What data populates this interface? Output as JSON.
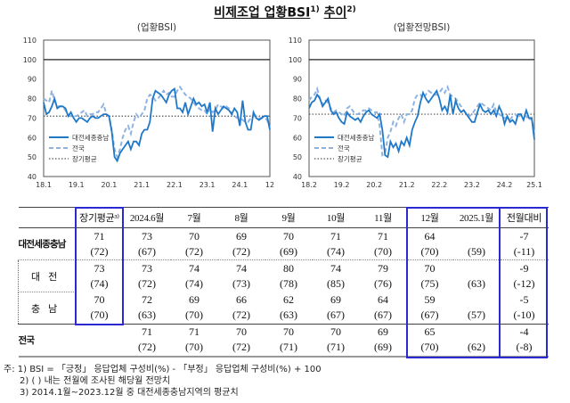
{
  "title": {
    "text": "비제조업 업황BSI",
    "sup1": "1)",
    "text2": "추이",
    "sup2": "2)"
  },
  "chart_data": [
    {
      "type": "line",
      "title": "(업황BSI)",
      "ylim": [
        40,
        110
      ],
      "yticks": [
        40,
        50,
        60,
        70,
        80,
        90,
        100,
        110
      ],
      "x_start": "2018-01",
      "x_ticks": [
        {
          "index": 0,
          "label": "18.1"
        },
        {
          "index": 12,
          "label": "19.1"
        },
        {
          "index": 24,
          "label": "20.1"
        },
        {
          "index": 36,
          "label": "21.1"
        },
        {
          "index": 48,
          "label": "22.1"
        },
        {
          "index": 60,
          "label": "23.1"
        },
        {
          "index": 72,
          "label": "24.1"
        },
        {
          "index": 83,
          "label": "12"
        }
      ],
      "reference_lines": [
        {
          "value": 100,
          "style": "solid"
        },
        {
          "name": "장기평균",
          "value": 71,
          "style": "dotted"
        }
      ],
      "legend": "bottom-left",
      "series": [
        {
          "name": "대전세종충남",
          "color": "#1f78c8",
          "style": "solid",
          "values": [
            78,
            72,
            73,
            76,
            80,
            75,
            76,
            76,
            75,
            71,
            73,
            70,
            68,
            70,
            70,
            69,
            68,
            70,
            71,
            70,
            70,
            71,
            72,
            72,
            71,
            63,
            50,
            48,
            52,
            54,
            56,
            58,
            54,
            58,
            58,
            56,
            62,
            64,
            64,
            68,
            80,
            84,
            83,
            82,
            80,
            78,
            82,
            84,
            85,
            75,
            75,
            73,
            78,
            72,
            76,
            80,
            77,
            78,
            76,
            77,
            73,
            78,
            63,
            75,
            72,
            74,
            76,
            75,
            74,
            72,
            75,
            73,
            66,
            79,
            68,
            64,
            64,
            73,
            70,
            69,
            70,
            71,
            71,
            64
          ]
        },
        {
          "name": "전국",
          "color": "#8fb3e0",
          "style": "dashed",
          "values": [
            80,
            79,
            78,
            84,
            79,
            76,
            76,
            76,
            74,
            72,
            71,
            71,
            71,
            72,
            73,
            74,
            71,
            72,
            72,
            73,
            73,
            75,
            77,
            72,
            71,
            64,
            54,
            50,
            54,
            60,
            64,
            66,
            62,
            68,
            72,
            70,
            72,
            74,
            80,
            82,
            81,
            79,
            80,
            82,
            84,
            82,
            83,
            81,
            81,
            84,
            86,
            84,
            82,
            81,
            80,
            78,
            76,
            75,
            74,
            74,
            72,
            75,
            73,
            74,
            77,
            76,
            75,
            76,
            75,
            72,
            71,
            70,
            70,
            69,
            68,
            68,
            70,
            71,
            71,
            70,
            70,
            70,
            69,
            65
          ]
        }
      ]
    },
    {
      "type": "line",
      "title": "(업황전망BSI)",
      "ylim": [
        40,
        110
      ],
      "yticks": [
        40,
        50,
        60,
        70,
        80,
        90,
        100,
        110
      ],
      "x_start": "2018-02",
      "x_ticks": [
        {
          "index": 0,
          "label": "18.2"
        },
        {
          "index": 12,
          "label": "19.2"
        },
        {
          "index": 24,
          "label": "20.2"
        },
        {
          "index": 36,
          "label": "21.2"
        },
        {
          "index": 48,
          "label": "22.2"
        },
        {
          "index": 60,
          "label": "23.2"
        },
        {
          "index": 72,
          "label": "24.2"
        },
        {
          "index": 83,
          "label": "25.1"
        }
      ],
      "reference_lines": [
        {
          "value": 100,
          "style": "solid"
        },
        {
          "name": "장기평균",
          "value": 72,
          "style": "dotted"
        }
      ],
      "legend": "bottom-left",
      "series": [
        {
          "name": "대전세종충남",
          "color": "#1f78c8",
          "style": "solid",
          "values": [
            75,
            78,
            79,
            82,
            80,
            76,
            78,
            80,
            74,
            72,
            73,
            70,
            68,
            67,
            73,
            71,
            70,
            69,
            70,
            68,
            71,
            73,
            74,
            72,
            71,
            70,
            72,
            64,
            51,
            50,
            58,
            55,
            57,
            53,
            58,
            56,
            60,
            56,
            64,
            68,
            71,
            78,
            83,
            80,
            78,
            80,
            82,
            84,
            80,
            74,
            76,
            73,
            82,
            72,
            79,
            75,
            73,
            74,
            72,
            70,
            68,
            68,
            73,
            77,
            74,
            73,
            74,
            72,
            74,
            71,
            76,
            73,
            67,
            71,
            68,
            69,
            67,
            72,
            72,
            69,
            74,
            70,
            70,
            59
          ]
        },
        {
          "name": "전국",
          "color": "#8fb3e0",
          "style": "dashed",
          "values": [
            79,
            81,
            82,
            85,
            80,
            77,
            79,
            78,
            75,
            73,
            74,
            73,
            72,
            71,
            75,
            76,
            74,
            72,
            72,
            73,
            74,
            74,
            75,
            74,
            73,
            73,
            66,
            51,
            52,
            60,
            63,
            68,
            66,
            70,
            72,
            68,
            72,
            72,
            74,
            80,
            82,
            82,
            80,
            82,
            84,
            83,
            82,
            82,
            83,
            85,
            83,
            86,
            82,
            81,
            80,
            78,
            76,
            74,
            72,
            71,
            72,
            74,
            76,
            78,
            77,
            76,
            75,
            74,
            77,
            73,
            72,
            71,
            70,
            70,
            69,
            71,
            72,
            70,
            72,
            71,
            71,
            69,
            70,
            62
          ]
        }
      ]
    }
  ],
  "table": {
    "headers": [
      "",
      "장기평균³⁾",
      "2024.6월",
      "7월",
      "8월",
      "9월",
      "10월",
      "11월",
      "12월",
      "2025.1월",
      "전월대비"
    ],
    "rows": [
      {
        "label": "대전세종충남",
        "values": [
          "71",
          "73",
          "70",
          "69",
          "70",
          "71",
          "71",
          "64",
          "",
          "-7"
        ],
        "forecasts": [
          "(72)",
          "(67)",
          "(72)",
          "(72)",
          "(69)",
          "(74)",
          "(70)",
          "(70)",
          "(59)",
          "(-11)"
        ]
      },
      {
        "label": "대전",
        "values": [
          "73",
          "73",
          "74",
          "74",
          "80",
          "74",
          "79",
          "70",
          "",
          "-9"
        ],
        "forecasts": [
          "(74)",
          "(72)",
          "(74)",
          "(73)",
          "(78)",
          "(85)",
          "(76)",
          "(75)",
          "(63)",
          "(-12)"
        ]
      },
      {
        "label": "충남",
        "values": [
          "70",
          "72",
          "69",
          "66",
          "62",
          "69",
          "64",
          "59",
          "",
          "-5"
        ],
        "forecasts": [
          "(70)",
          "(63)",
          "(70)",
          "(72)",
          "(63)",
          "(67)",
          "(67)",
          "(67)",
          "(57)",
          "(-10)"
        ]
      },
      {
        "label": "전국",
        "values": [
          "",
          "71",
          "71",
          "70",
          "70",
          "70",
          "69",
          "65",
          "",
          "-4"
        ],
        "forecasts": [
          "",
          "(72)",
          "(70)",
          "(72)",
          "(71)",
          "(71)",
          "(69)",
          "(70)",
          "(62)",
          "(-8)"
        ]
      }
    ],
    "highlight_color": "#2a2ad0"
  },
  "notes": [
    "주: 1) BSI = 「긍정」 응답업체 구성비(%) - 「부정」 응답업체 구성비(%) + 100",
    "2) (   ) 내는 전월에 조사된 해당월 전망치",
    "3) 2014.1월~2023.12월 중 대전세종충남지역의 평균치"
  ]
}
